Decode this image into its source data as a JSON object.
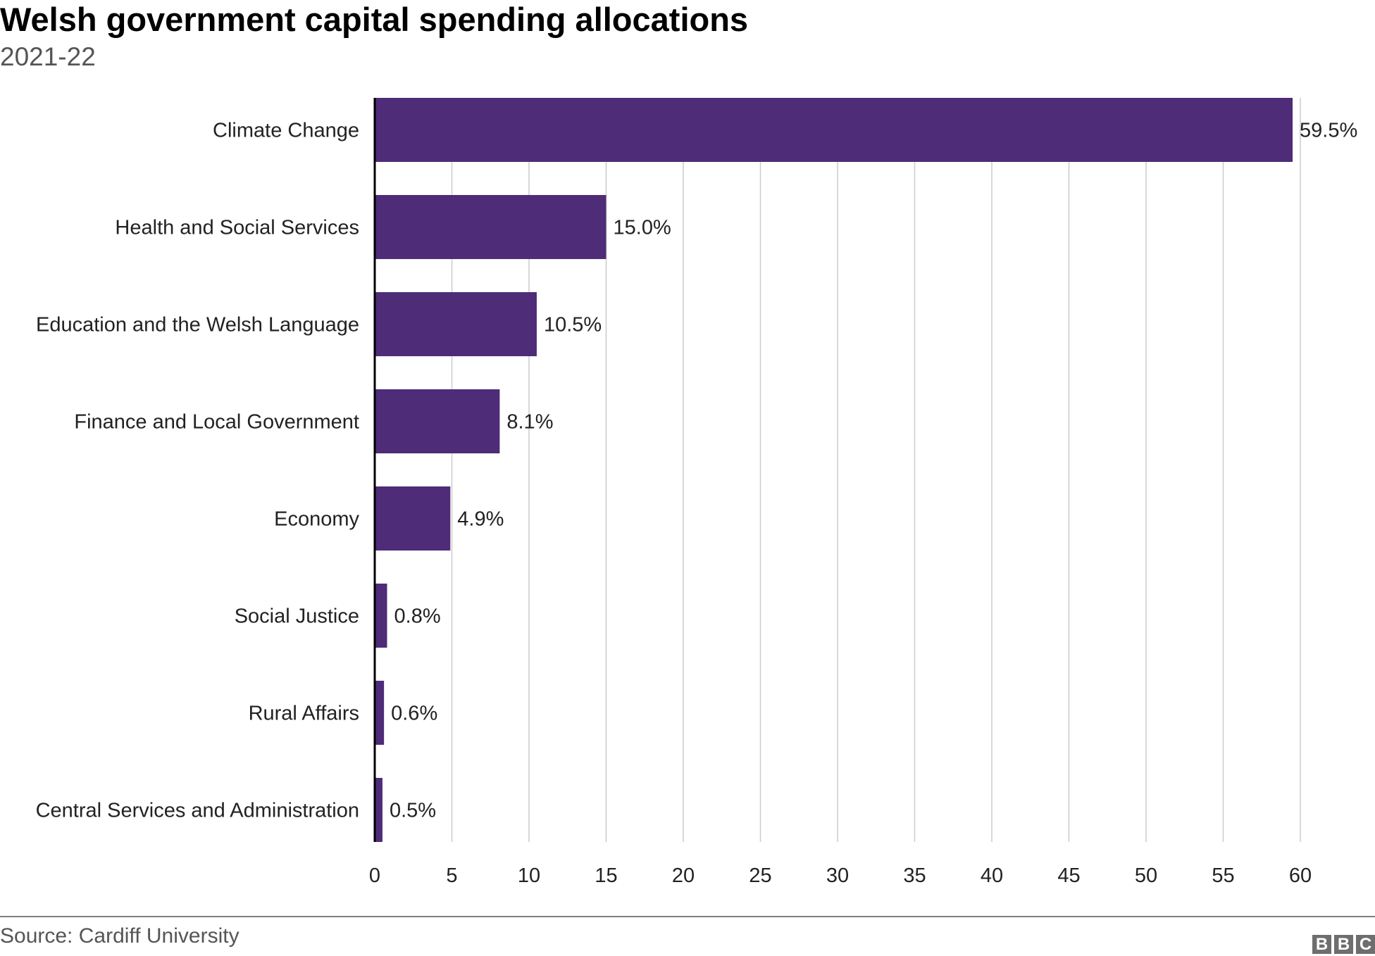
{
  "chart_data": {
    "type": "bar",
    "orientation": "horizontal",
    "title": "Welsh government capital spending allocations",
    "subtitle": "2021-22",
    "categories": [
      "Climate Change",
      "Health and Social Services",
      "Education and the Welsh Language",
      "Finance and Local Government",
      "Economy",
      "Social Justice",
      "Rural Affairs",
      "Central Services and Administration"
    ],
    "values": [
      59.5,
      15.0,
      10.5,
      8.1,
      4.9,
      0.8,
      0.6,
      0.5
    ],
    "data_labels": [
      "59.5%",
      "15.0%",
      "10.5%",
      "8.1%",
      "4.9%",
      "0.8%",
      "0.6%",
      "0.5%"
    ],
    "xlim": [
      0,
      60
    ],
    "xticks": [
      0,
      5,
      10,
      15,
      20,
      25,
      30,
      35,
      40,
      45,
      50,
      55,
      60
    ],
    "grid": "vertical",
    "bar_color": "#4e2c78",
    "source": "Source: Cardiff University",
    "logo": "BBC"
  }
}
